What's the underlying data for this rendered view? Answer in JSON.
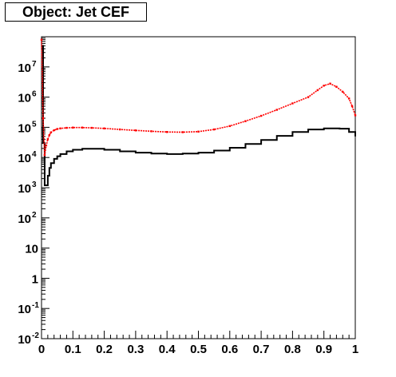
{
  "chart_data": {
    "type": "line",
    "title": "Object: Jet CEF",
    "xlabel": "",
    "ylabel": "",
    "xlim": [
      0,
      1
    ],
    "ylim": [
      0.01,
      100000000
    ],
    "yscale": "log",
    "grid": false,
    "legend": "none",
    "x_ticks": [
      {
        "value": 0,
        "label": "0"
      },
      {
        "value": 0.1,
        "label": "0.1"
      },
      {
        "value": 0.2,
        "label": "0.2"
      },
      {
        "value": 0.3,
        "label": "0.3"
      },
      {
        "value": 0.4,
        "label": "0.4"
      },
      {
        "value": 0.5,
        "label": "0.5"
      },
      {
        "value": 0.6,
        "label": "0.6"
      },
      {
        "value": 0.7,
        "label": "0.7"
      },
      {
        "value": 0.8,
        "label": "0.8"
      },
      {
        "value": 0.9,
        "label": "0.9"
      },
      {
        "value": 1,
        "label": "1"
      }
    ],
    "y_ticks": [
      {
        "value": 0.01,
        "base": "10",
        "exp": "-2"
      },
      {
        "value": 0.1,
        "base": "10",
        "exp": "-1"
      },
      {
        "value": 1,
        "base": "1",
        "exp": ""
      },
      {
        "value": 10,
        "base": "10",
        "exp": ""
      },
      {
        "value": 100,
        "base": "10",
        "exp": "2"
      },
      {
        "value": 1000,
        "base": "10",
        "exp": "3"
      },
      {
        "value": 10000,
        "base": "10",
        "exp": "4"
      },
      {
        "value": 100000,
        "base": "10",
        "exp": "5"
      },
      {
        "value": 1000000,
        "base": "10",
        "exp": "6"
      },
      {
        "value": 10000000,
        "base": "10",
        "exp": "7"
      }
    ],
    "series": [
      {
        "color": "#000000",
        "style": "step",
        "x": [
          0.0,
          0.005,
          0.01,
          0.015,
          0.02,
          0.025,
          0.03,
          0.04,
          0.05,
          0.06,
          0.08,
          0.1,
          0.13,
          0.16,
          0.2,
          0.25,
          0.3,
          0.35,
          0.4,
          0.45,
          0.5,
          0.55,
          0.6,
          0.65,
          0.7,
          0.75,
          0.8,
          0.85,
          0.9,
          0.95,
          0.98,
          1.0
        ],
        "y": [
          50000000,
          30000,
          1200,
          1200,
          2500,
          4500,
          6500,
          9000,
          11000,
          13000,
          16000,
          18000,
          19500,
          19500,
          18000,
          16000,
          14500,
          13500,
          13000,
          13500,
          14500,
          17000,
          21000,
          28000,
          38000,
          52000,
          70000,
          85000,
          92000,
          90000,
          70000,
          50000
        ]
      },
      {
        "color": "#ff0000",
        "style": "markers",
        "x": [
          0.0,
          0.005,
          0.01,
          0.015,
          0.02,
          0.025,
          0.03,
          0.04,
          0.05,
          0.06,
          0.08,
          0.1,
          0.13,
          0.16,
          0.2,
          0.25,
          0.3,
          0.35,
          0.4,
          0.45,
          0.5,
          0.55,
          0.6,
          0.65,
          0.7,
          0.75,
          0.8,
          0.85,
          0.88,
          0.9,
          0.92,
          0.94,
          0.96,
          0.98,
          0.99,
          1.0
        ],
        "y": [
          80000000,
          200000,
          12000,
          25000,
          40000,
          55000,
          68000,
          80000,
          88000,
          92000,
          96000,
          98000,
          98000,
          96000,
          92000,
          85000,
          79000,
          74000,
          70000,
          69000,
          72000,
          85000,
          110000,
          160000,
          240000,
          380000,
          620000,
          1000000,
          1700000,
          2400000,
          2800000,
          2200000,
          1500000,
          900000,
          500000,
          250000
        ]
      }
    ]
  }
}
